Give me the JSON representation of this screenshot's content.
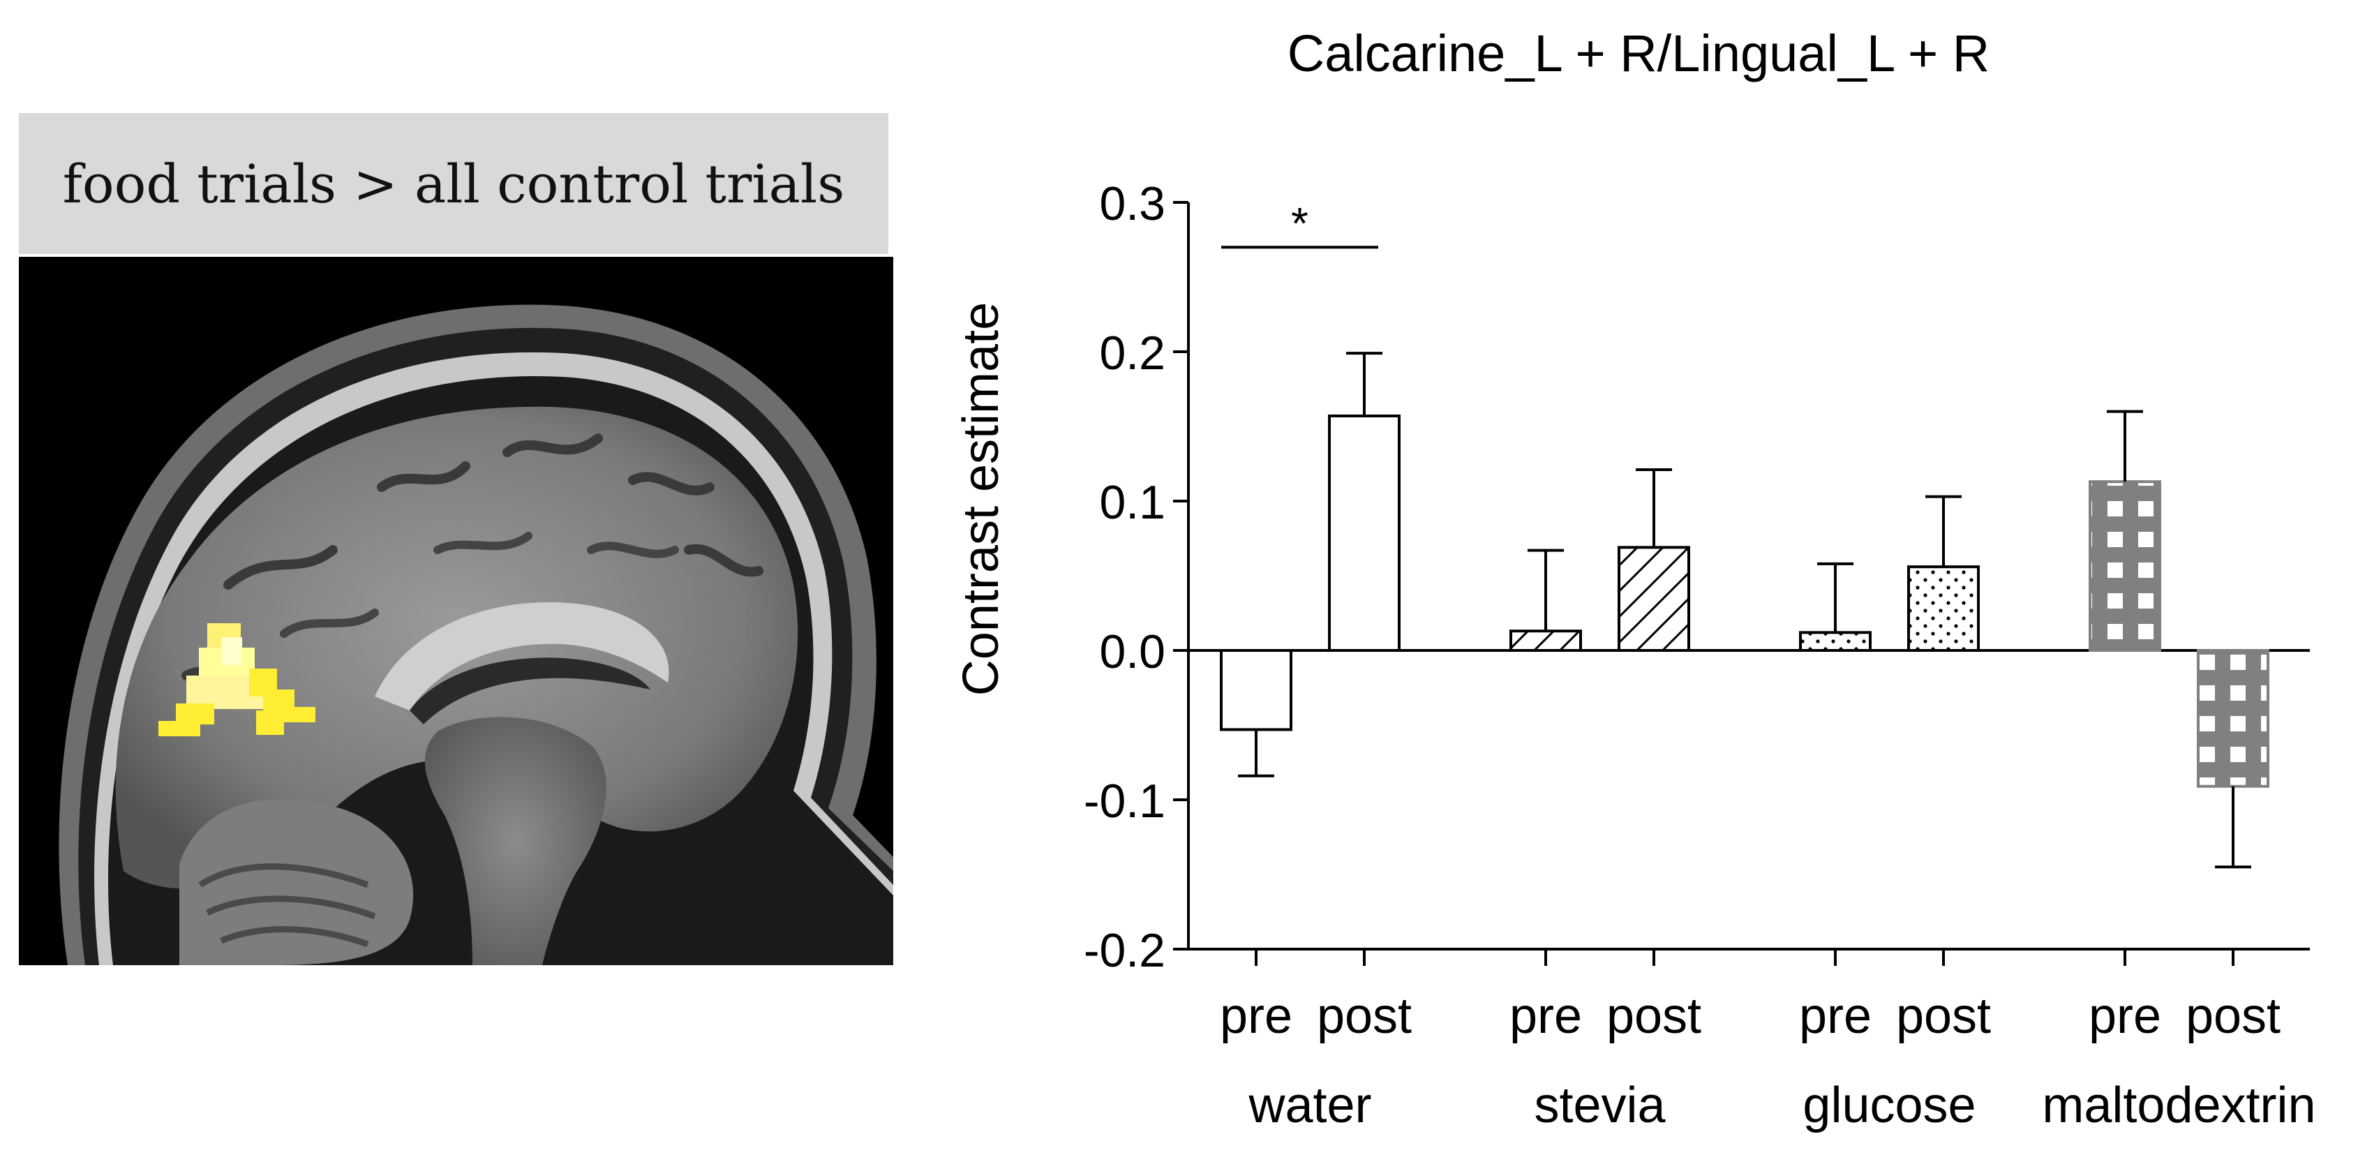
{
  "brain_panel": {
    "header": "food trials > all control trials",
    "image_description_icon": "sagittal-mri-brain-slice-with-yellow-activation-cluster"
  },
  "chart_data": {
    "type": "bar",
    "title": "Calcarine_L + R/Lingual_L + R",
    "xlabel": "",
    "ylabel": "Contrast estimate",
    "ylim": [
      -0.2,
      0.3
    ],
    "yticks": [
      -0.2,
      -0.1,
      0.0,
      0.1,
      0.2,
      0.3
    ],
    "ytick_labels": [
      "-0.2",
      "-0.1",
      "0.0",
      "0.1",
      "0.2",
      "0.3"
    ],
    "groups": [
      "water",
      "stevia",
      "glucose",
      "maltodextrin"
    ],
    "conditions": [
      "pre",
      "post"
    ],
    "bars": [
      {
        "group": "water",
        "condition": "pre",
        "value": -0.053,
        "error": 0.031,
        "pattern": "empty"
      },
      {
        "group": "water",
        "condition": "post",
        "value": 0.157,
        "error": 0.042,
        "pattern": "empty"
      },
      {
        "group": "stevia",
        "condition": "pre",
        "value": 0.013,
        "error": 0.054,
        "pattern": "diagonal-hatch"
      },
      {
        "group": "stevia",
        "condition": "post",
        "value": 0.069,
        "error": 0.052,
        "pattern": "diagonal-hatch"
      },
      {
        "group": "glucose",
        "condition": "pre",
        "value": 0.012,
        "error": 0.046,
        "pattern": "dots"
      },
      {
        "group": "glucose",
        "condition": "post",
        "value": 0.056,
        "error": 0.047,
        "pattern": "dots"
      },
      {
        "group": "maltodextrin",
        "condition": "pre",
        "value": 0.113,
        "error": 0.047,
        "pattern": "grid"
      },
      {
        "group": "maltodextrin",
        "condition": "post",
        "value": -0.091,
        "error": 0.054,
        "pattern": "grid"
      }
    ],
    "significance": [
      {
        "group": "water",
        "label": "*",
        "y": 0.27
      }
    ],
    "grid": false,
    "legend": "none",
    "colors": {
      "axis": "#000000",
      "grid_fill": "#808080",
      "bar_edge": "#000000"
    }
  }
}
